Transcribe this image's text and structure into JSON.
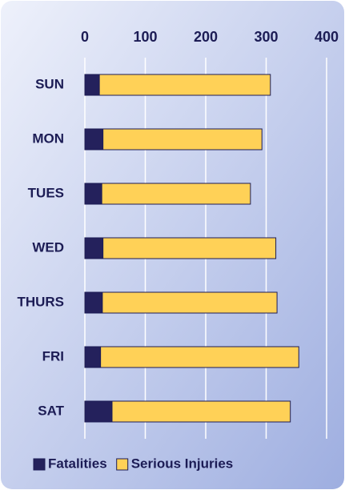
{
  "chart_data": {
    "type": "stacked_bar_horizontal",
    "categories": [
      "SUN",
      "MON",
      "TUES",
      "WED",
      "THURS",
      "FRI",
      "SAT"
    ],
    "series": [
      {
        "name": "Fatalities",
        "color": "#24215c",
        "values": [
          24,
          30,
          28,
          30,
          29,
          26,
          45
        ]
      },
      {
        "name": "Serious Injuries",
        "color": "#ffd157",
        "values": [
          283,
          263,
          246,
          286,
          289,
          328,
          295
        ]
      }
    ],
    "xlim": [
      0,
      400
    ],
    "xticks": [
      0,
      100,
      200,
      300,
      400
    ],
    "grid": true,
    "legend": "bottom"
  }
}
